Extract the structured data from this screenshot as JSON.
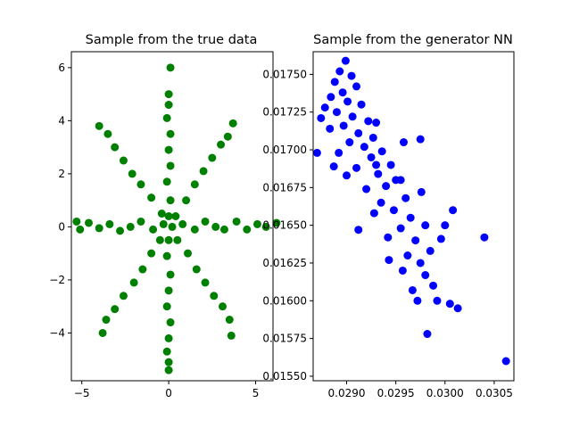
{
  "chart_data": [
    {
      "type": "scatter",
      "title": "Sample from the true data",
      "xlabel": "",
      "ylabel": "",
      "xlim": [
        -5.6,
        6.0
      ],
      "ylim": [
        -5.8,
        6.6
      ],
      "xticks": [
        -5,
        0,
        5
      ],
      "yticks": [
        -4,
        -2,
        0,
        2,
        4,
        6
      ],
      "xtick_labels": [
        "−5",
        "0",
        "5"
      ],
      "ytick_labels": [
        "−4",
        "−2",
        "0",
        "2",
        "4",
        "6"
      ],
      "grid": false,
      "color": "#008000",
      "structure": "eight radial arms from origin (0°,45°,...,315°), points along each arm out to radius ~5.5",
      "series": [
        {
          "points": [
            [
              0.2,
              0.0
            ],
            [
              0.8,
              0.1
            ],
            [
              1.5,
              -0.1
            ],
            [
              2.1,
              0.2
            ],
            [
              2.7,
              0.0
            ],
            [
              3.2,
              -0.1
            ],
            [
              3.9,
              0.2
            ],
            [
              4.5,
              -0.1
            ],
            [
              5.1,
              0.1
            ],
            [
              5.6,
              0.0
            ],
            [
              6.2,
              0.15
            ],
            [
              -0.3,
              0.1
            ],
            [
              -0.9,
              -0.1
            ],
            [
              -1.6,
              0.2
            ],
            [
              -2.2,
              0.0
            ],
            [
              -2.8,
              -0.15
            ],
            [
              -3.4,
              0.1
            ],
            [
              -4.0,
              -0.05
            ],
            [
              -4.6,
              0.15
            ],
            [
              -5.1,
              -0.1
            ],
            [
              -5.3,
              0.2
            ],
            [
              0.0,
              0.4
            ],
            [
              0.1,
              1.0
            ],
            [
              -0.1,
              1.7
            ],
            [
              0.1,
              2.3
            ],
            [
              0.0,
              2.9
            ],
            [
              0.1,
              3.5
            ],
            [
              -0.1,
              4.1
            ],
            [
              0.0,
              4.6
            ],
            [
              0.0,
              5.0
            ],
            [
              0.1,
              6.0
            ],
            [
              0.0,
              -0.5
            ],
            [
              -0.1,
              -1.1
            ],
            [
              0.1,
              -1.8
            ],
            [
              0.0,
              -2.4
            ],
            [
              -0.1,
              -3.0
            ],
            [
              0.1,
              -3.6
            ],
            [
              0.0,
              -4.2
            ],
            [
              -0.1,
              -4.7
            ],
            [
              0.0,
              -5.1
            ],
            [
              0.0,
              -5.4
            ],
            [
              0.4,
              0.4
            ],
            [
              1.0,
              1.0
            ],
            [
              1.5,
              1.6
            ],
            [
              2.0,
              2.1
            ],
            [
              2.5,
              2.6
            ],
            [
              3.0,
              3.1
            ],
            [
              3.4,
              3.4
            ],
            [
              3.7,
              3.9
            ],
            [
              -0.4,
              0.5
            ],
            [
              -1.0,
              1.1
            ],
            [
              -1.6,
              1.6
            ],
            [
              -2.1,
              2.0
            ],
            [
              -2.6,
              2.5
            ],
            [
              -3.1,
              3.0
            ],
            [
              -3.5,
              3.5
            ],
            [
              -4.0,
              3.8
            ],
            [
              0.5,
              -0.5
            ],
            [
              1.1,
              -1.0
            ],
            [
              1.6,
              -1.6
            ],
            [
              2.1,
              -2.1
            ],
            [
              2.6,
              -2.6
            ],
            [
              3.1,
              -3.0
            ],
            [
              3.5,
              -3.5
            ],
            [
              3.6,
              -4.1
            ],
            [
              -0.5,
              -0.5
            ],
            [
              -1.0,
              -1.0
            ],
            [
              -1.5,
              -1.6
            ],
            [
              -2.0,
              -2.1
            ],
            [
              -2.6,
              -2.6
            ],
            [
              -3.1,
              -3.1
            ],
            [
              -3.6,
              -3.5
            ],
            [
              -3.8,
              -4.0
            ]
          ]
        }
      ]
    },
    {
      "type": "scatter",
      "title": "Sample from the generator NN",
      "xlabel": "",
      "ylabel": "",
      "xlim": [
        0.02866,
        0.0307
      ],
      "ylim": [
        0.01547,
        0.01765
      ],
      "xticks": [
        0.029,
        0.0295,
        0.03,
        0.0305
      ],
      "yticks": [
        0.0155,
        0.01575,
        0.016,
        0.01625,
        0.0165,
        0.01675,
        0.017,
        0.01725,
        0.0175
      ],
      "xtick_labels": [
        "0.0290",
        "0.0295",
        "0.0300",
        "0.0305"
      ],
      "ytick_labels": [
        "0.01550",
        "0.01575",
        "0.01600",
        "0.01625",
        "0.01650",
        "0.01675",
        "0.01700",
        "0.01725",
        "0.01750"
      ],
      "grid": false,
      "color": "#0000ff",
      "structure": "dense cluster near (0.0290, 0.0173) elongated toward lower-right with sparse tail",
      "series": [
        {
          "points": [
            [
              0.02899,
              0.01759
            ],
            [
              0.02893,
              0.01752
            ],
            [
              0.02905,
              0.01749
            ],
            [
              0.02888,
              0.01745
            ],
            [
              0.0291,
              0.01742
            ],
            [
              0.02896,
              0.01738
            ],
            [
              0.02884,
              0.01735
            ],
            [
              0.02901,
              0.01732
            ],
            [
              0.02915,
              0.0173
            ],
            [
              0.02878,
              0.01728
            ],
            [
              0.0289,
              0.01725
            ],
            [
              0.02906,
              0.01722
            ],
            [
              0.02874,
              0.01721
            ],
            [
              0.02922,
              0.01719
            ],
            [
              0.02897,
              0.01716
            ],
            [
              0.02883,
              0.01714
            ],
            [
              0.02912,
              0.01711
            ],
            [
              0.0293,
              0.01718
            ],
            [
              0.02927,
              0.01708
            ],
            [
              0.02903,
              0.01705
            ],
            [
              0.02918,
              0.01702
            ],
            [
              0.02936,
              0.01699
            ],
            [
              0.02892,
              0.01698
            ],
            [
              0.0287,
              0.01698
            ],
            [
              0.02925,
              0.01695
            ],
            [
              0.02945,
              0.0169
            ],
            [
              0.0291,
              0.01688
            ],
            [
              0.02887,
              0.01689
            ],
            [
              0.02932,
              0.01684
            ],
            [
              0.02955,
              0.0168
            ],
            [
              0.029,
              0.01683
            ],
            [
              0.0294,
              0.01676
            ],
            [
              0.0292,
              0.01674
            ],
            [
              0.0296,
              0.01668
            ],
            [
              0.02935,
              0.01665
            ],
            [
              0.02976,
              0.01672
            ],
            [
              0.02948,
              0.0166
            ],
            [
              0.02928,
              0.01658
            ],
            [
              0.02912,
              0.01647
            ],
            [
              0.02965,
              0.01655
            ],
            [
              0.0298,
              0.0165
            ],
            [
              0.02955,
              0.01648
            ],
            [
              0.02942,
              0.01642
            ],
            [
              0.0297,
              0.0164
            ],
            [
              0.02996,
              0.01641
            ],
            [
              0.02985,
              0.01633
            ],
            [
              0.02962,
              0.0163
            ],
            [
              0.02943,
              0.01627
            ],
            [
              0.02975,
              0.01625
            ],
            [
              0.02957,
              0.0162
            ],
            [
              0.0298,
              0.01617
            ],
            [
              0.02988,
              0.0161
            ],
            [
              0.02967,
              0.01607
            ],
            [
              0.02972,
              0.016
            ],
            [
              0.02992,
              0.016
            ],
            [
              0.03005,
              0.01598
            ],
            [
              0.03013,
              0.01595
            ],
            [
              0.03,
              0.0165
            ],
            [
              0.03008,
              0.0166
            ],
            [
              0.0304,
              0.01642
            ],
            [
              0.02982,
              0.01578
            ],
            [
              0.0295,
              0.0168
            ],
            [
              0.02975,
              0.01707
            ],
            [
              0.02958,
              0.01705
            ],
            [
              0.0293,
              0.0169
            ],
            [
              0.03062,
              0.0156
            ]
          ]
        }
      ]
    }
  ]
}
